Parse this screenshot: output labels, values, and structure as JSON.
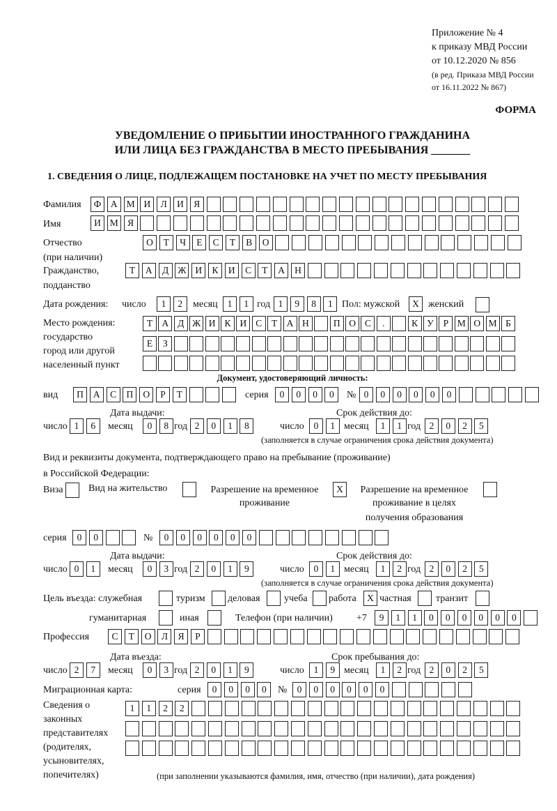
{
  "header": {
    "appendix": [
      "Приложение № 4",
      "к приказу МВД России",
      "от 10.12.2020 № 856"
    ],
    "edition": [
      "(в ред. Приказа МВД России",
      "от 16.11.2022 № 867)"
    ],
    "form": "ФОРМА",
    "title1": "УВЕДОМЛЕНИЕ О ПРИБЫТИИ ИНОСТРАННОГО ГРАЖДАНИНА",
    "title2": "ИЛИ ЛИЦА БЕЗ ГРАЖДАНСТВА В МЕСТО ПРЕБЫВАНИЯ _______",
    "section1": "1. СВЕДЕНИЯ О ЛИЦЕ, ПОДЛЕЖАЩЕМ ПОСТАНОВКЕ НА УЧЕТ ПО МЕСТУ ПРЕБЫВАНИЯ"
  },
  "labels": {
    "surname": "Фамилия",
    "name": "Имя",
    "patronymic1": "Отчество",
    "patronymic2": "(при наличии)",
    "citizenship1": "Гражданство,",
    "citizenship2": "подданство",
    "dob": "Дата рождения:",
    "day": "число",
    "month": "месяц",
    "year": "год",
    "sex_male": "Пол: мужской",
    "sex_female": "женский",
    "pob1": "Место рождения:",
    "pob2": "государство",
    "pob3": "город или другой",
    "pob4": "населенный пункт",
    "id_doc": "Документ, удостоверяющий личность:",
    "kind": "вид",
    "series": "серия",
    "number": "№",
    "issue_date": "Дата выдачи:",
    "valid_until": "Срок действия до:",
    "valid_note": "(заполняется в случае ограничения срока действия документа)",
    "right_doc1": "Вид и реквизиты документа, подтверждающего право на пребывание (проживание)",
    "right_doc2": "в Российской Федерации:",
    "visa": "Виза",
    "residence": "Вид на жительство",
    "temp1": "Разрешение на временное",
    "temp2": "проживание",
    "edu1": "Разрешение на временное",
    "edu2": "проживание в целях",
    "edu3": "получения образования",
    "purpose": "Цель въезда: служебная",
    "tourism": "туризм",
    "business": "деловая",
    "study": "учеба",
    "work": "работа",
    "private": "частная",
    "transit": "транзит",
    "humanitarian": "гуманитарная",
    "other": "иная",
    "phone": "Телефон (при наличии)",
    "phone_prefix": "+7",
    "profession": "Профессия",
    "entry_date": "Дата въезда:",
    "stay_until": "Срок пребывания до:",
    "migration_card": "Миграционная карта:",
    "reps": [
      "Сведения о",
      "законных",
      "представителях",
      "(родителях,",
      "усыновителях,",
      "попечителях)"
    ],
    "reps_note": "(при заполнении указываются фамилия, имя, отчество (при наличии), дата рождения)"
  },
  "fields": {
    "surname": [
      "Ф",
      "А",
      "М",
      "И",
      "Л",
      "И",
      "Я",
      "",
      "",
      "",
      "",
      "",
      "",
      "",
      "",
      "",
      "",
      "",
      "",
      "",
      "",
      "",
      "",
      "",
      "",
      ""
    ],
    "name": [
      "И",
      "М",
      "Я",
      "",
      "",
      "",
      "",
      "",
      "",
      "",
      "",
      "",
      "",
      "",
      "",
      "",
      "",
      "",
      "",
      "",
      "",
      "",
      "",
      "",
      "",
      ""
    ],
    "patronymic": [
      "О",
      "Т",
      "Ч",
      "Е",
      "С",
      "Т",
      "В",
      "О",
      "",
      "",
      "",
      "",
      "",
      "",
      "",
      "",
      "",
      "",
      "",
      "",
      "",
      "",
      ""
    ],
    "citizenship": [
      "Т",
      "А",
      "Д",
      "Ж",
      "И",
      "К",
      "И",
      "С",
      "Т",
      "А",
      "Н",
      "",
      "",
      "",
      "",
      "",
      "",
      "",
      "",
      "",
      "",
      "",
      "",
      ""
    ],
    "dob_day": [
      "1",
      "2"
    ],
    "dob_month": [
      "1",
      "1"
    ],
    "dob_year": [
      "1",
      "9",
      "8",
      "1"
    ],
    "sex_male": [
      "X"
    ],
    "sex_female": [
      ""
    ],
    "pob1": [
      "Т",
      "А",
      "Д",
      "Ж",
      "И",
      "К",
      "И",
      "С",
      "Т",
      "А",
      "Н",
      "",
      "П",
      "О",
      "С",
      ".",
      "",
      "К",
      "У",
      "Р",
      "М",
      "О",
      "М",
      "Б"
    ],
    "pob2": [
      "Е",
      "З",
      "",
      "",
      "",
      "",
      "",
      "",
      "",
      "",
      "",
      "",
      "",
      "",
      "",
      "",
      "",
      "",
      "",
      "",
      "",
      "",
      "",
      ""
    ],
    "pob3": [
      "",
      "",
      "",
      "",
      "",
      "",
      "",
      "",
      "",
      "",
      "",
      "",
      "",
      "",
      "",
      "",
      "",
      "",
      "",
      "",
      "",
      "",
      "",
      ""
    ],
    "id_kind": [
      "П",
      "А",
      "С",
      "П",
      "О",
      "Р",
      "Т",
      "",
      "",
      ""
    ],
    "id_series": [
      "0",
      "0",
      "0",
      "0"
    ],
    "id_number": [
      "0",
      "0",
      "0",
      "0",
      "0",
      "0",
      "",
      "",
      "",
      "",
      ""
    ],
    "id_issue_day": [
      "1",
      "6"
    ],
    "id_issue_month": [
      "0",
      "8"
    ],
    "id_issue_year": [
      "2",
      "0",
      "1",
      "8"
    ],
    "id_valid_day": [
      "0",
      "1"
    ],
    "id_valid_month": [
      "1",
      "1"
    ],
    "id_valid_year": [
      "2",
      "0",
      "2",
      "5"
    ],
    "visa": [
      ""
    ],
    "residence": [
      ""
    ],
    "temp_residence": [
      "X"
    ],
    "edu_residence": [
      ""
    ],
    "rd_series": [
      "0",
      "0",
      "",
      ""
    ],
    "rd_number": [
      "0",
      "0",
      "0",
      "0",
      "0",
      "0",
      "",
      "",
      "",
      "",
      "",
      "",
      "",
      ""
    ],
    "rd_issue_day": [
      "0",
      "1"
    ],
    "rd_issue_month": [
      "0",
      "3"
    ],
    "rd_issue_year": [
      "2",
      "0",
      "1",
      "9"
    ],
    "rd_valid_day": [
      "0",
      "1"
    ],
    "rd_valid_month": [
      "1",
      "2"
    ],
    "rd_valid_year": [
      "2",
      "0",
      "2",
      "5"
    ],
    "p_service": [
      ""
    ],
    "p_tourism": [
      ""
    ],
    "p_business": [
      ""
    ],
    "p_study": [
      ""
    ],
    "p_work": [
      "X"
    ],
    "p_private": [
      ""
    ],
    "p_transit": [
      ""
    ],
    "p_humanitarian": [
      ""
    ],
    "p_other": [
      ""
    ],
    "phone": [
      "9",
      "1",
      "1",
      "0",
      "0",
      "0",
      "0",
      "0",
      "0",
      ""
    ],
    "profession": [
      "С",
      "Т",
      "О",
      "Л",
      "Я",
      "Р",
      "",
      "",
      "",
      "",
      "",
      "",
      "",
      "",
      "",
      "",
      "",
      "",
      "",
      "",
      "",
      "",
      "",
      "",
      ""
    ],
    "entry_day": [
      "2",
      "7"
    ],
    "entry_month": [
      "0",
      "3"
    ],
    "entry_year": [
      "2",
      "0",
      "1",
      "9"
    ],
    "stay_day": [
      "1",
      "9"
    ],
    "stay_month": [
      "1",
      "2"
    ],
    "stay_year": [
      "2",
      "0",
      "2",
      "5"
    ],
    "mc_series": [
      "0",
      "0",
      "0",
      "0"
    ],
    "mc_number": [
      "0",
      "0",
      "0",
      "0",
      "0",
      "0",
      "",
      "",
      "",
      "",
      ""
    ],
    "reps1": [
      "1",
      "1",
      "2",
      "2",
      "",
      "",
      "",
      "",
      "",
      "",
      "",
      "",
      "",
      "",
      "",
      "",
      "",
      "",
      "",
      "",
      "",
      "",
      "",
      ""
    ],
    "reps2": [
      "",
      "",
      "",
      "",
      "",
      "",
      "",
      "",
      "",
      "",
      "",
      "",
      "",
      "",
      "",
      "",
      "",
      "",
      "",
      "",
      "",
      "",
      "",
      ""
    ],
    "reps3": [
      "",
      "",
      "",
      "",
      "",
      "",
      "",
      "",
      "",
      "",
      "",
      "",
      "",
      "",
      "",
      "",
      "",
      "",
      "",
      "",
      "",
      "",
      "",
      ""
    ]
  }
}
